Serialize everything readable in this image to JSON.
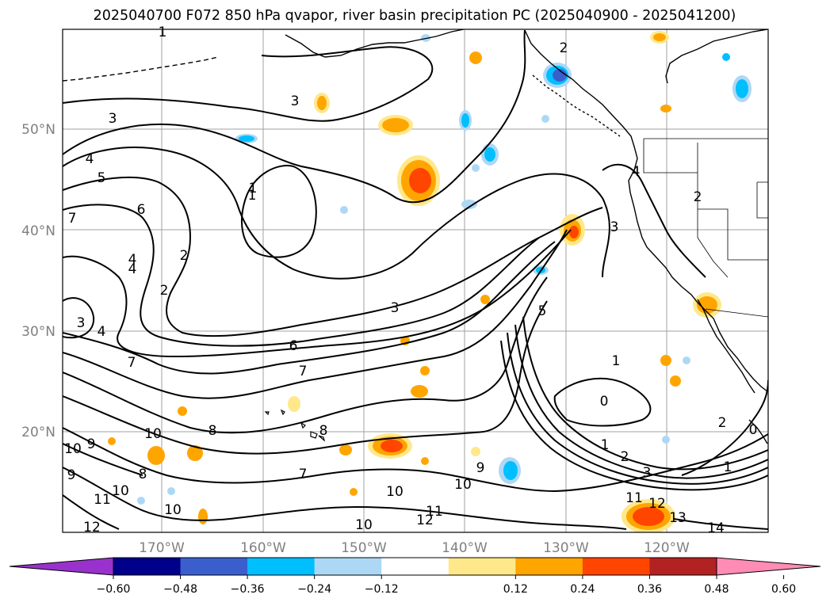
{
  "title": "2025040700 F072 850 hPa qvapor, river basin precipitation PC (2025040900 - 2025041200)",
  "map": {
    "lat_labels": [
      "50°N",
      "40°N",
      "30°N",
      "20°N"
    ],
    "lon_labels": [
      "170°W",
      "160°W",
      "150°W",
      "140°W",
      "130°W",
      "120°W"
    ],
    "grid": true,
    "coastlines": true,
    "contour_color": "#000000"
  },
  "contour_labels": [
    "1",
    "2",
    "3",
    "3",
    "5",
    "6",
    "4",
    "2",
    "2",
    "1",
    "7",
    "4",
    "3",
    "4",
    "6",
    "7",
    "3",
    "5",
    "8",
    "10",
    "9",
    "10",
    "9",
    "8",
    "11",
    "10",
    "12",
    "10",
    "7",
    "8",
    "10",
    "11",
    "12",
    "9",
    "10",
    "3",
    "4",
    "2",
    "1",
    "0",
    "1",
    "2",
    "3",
    "1",
    "2",
    "0",
    "1",
    "11",
    "12",
    "13",
    "14",
    "4",
    "7",
    "10"
  ],
  "colorbar": {
    "ticks": [
      "−0.60",
      "−0.48",
      "−0.36",
      "−0.24",
      "−0.12",
      "0.12",
      "0.24",
      "0.36",
      "0.48",
      "0.60"
    ],
    "colors": [
      "#9932cc",
      "#00008b",
      "#3a5fcd",
      "#00bfff",
      "#add8f5",
      "#ffffff",
      "#ffe88a",
      "#ffa500",
      "#ff4500",
      "#b22222",
      "#ff8cb4"
    ],
    "extend": "both"
  }
}
